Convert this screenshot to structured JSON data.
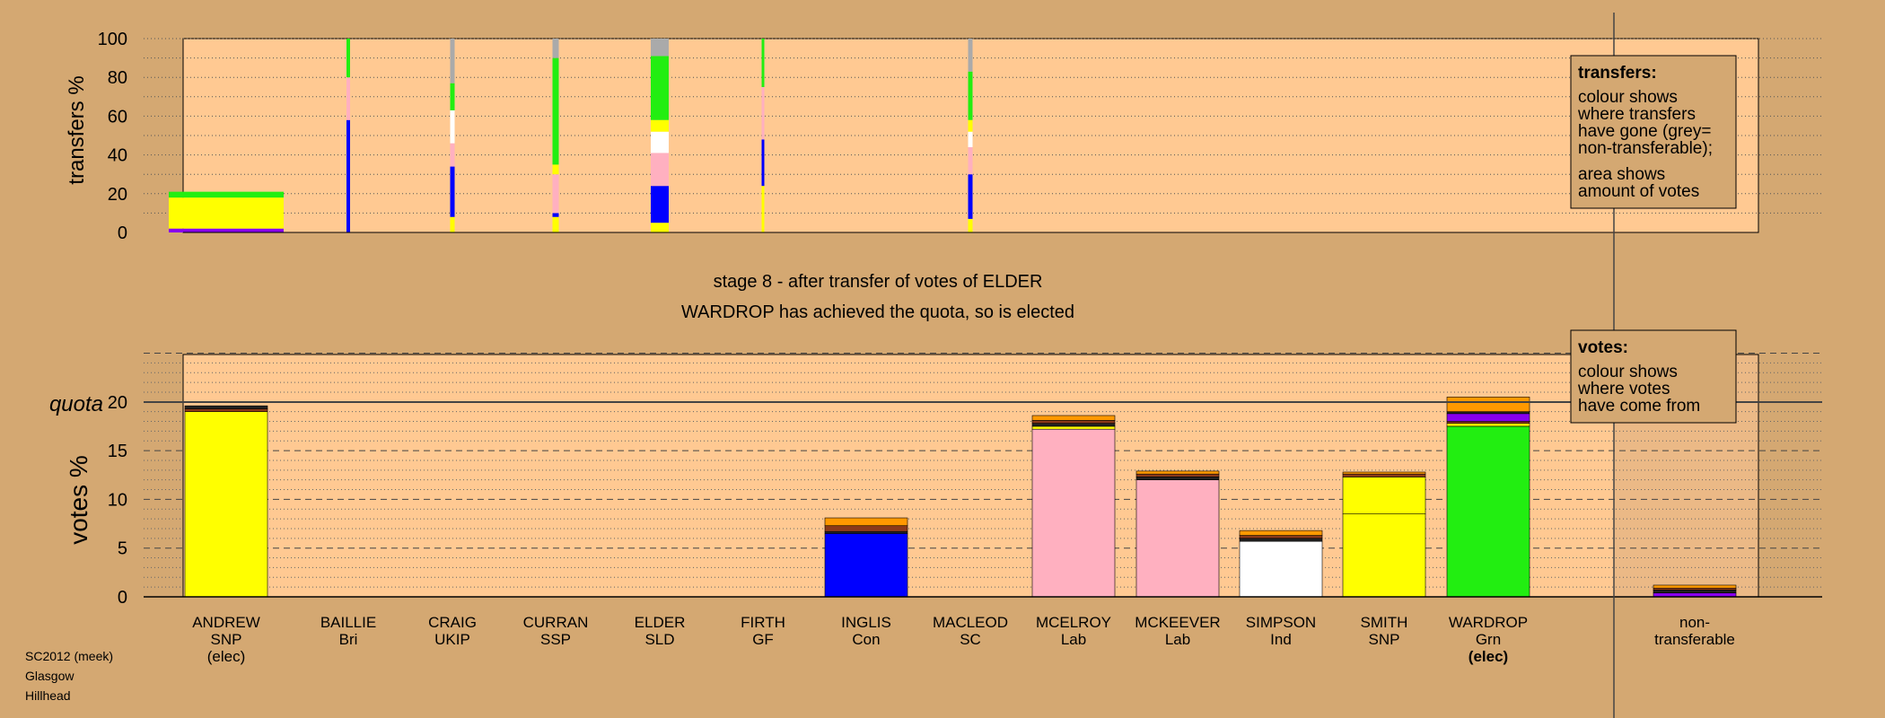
{
  "colors": {
    "background": "#d4a872",
    "panel": "#ffc992",
    "snp": "#ffff00",
    "pink": "#ffb0c0",
    "green": "#22ee11",
    "blue": "#0000ff",
    "white": "#ffffff",
    "grey": "#aaaaaa",
    "orange": "#ff9900",
    "brown": "#8b3a1a",
    "purple": "#8800ee",
    "dark": "#222222"
  },
  "status": {
    "stage": "stage 8 - after transfer of votes of ELDER",
    "elected": "WARDROP has achieved the quota, so is elected"
  },
  "legend_transfers": {
    "title": "transfers:",
    "lines": [
      "colour shows",
      "where transfers",
      "have gone (grey=",
      "non-transferable);"
    ],
    "lines2": [
      "area shows",
      "amount of votes"
    ]
  },
  "legend_votes": {
    "title": "votes:",
    "lines": [
      "colour shows",
      "where votes",
      "have come from"
    ]
  },
  "footer": [
    "SC2012 (meek)",
    "Glasgow",
    "Hillhead"
  ],
  "chart_data": [
    {
      "type": "bar",
      "name": "transfers",
      "ylabel": "transfers %",
      "ylim": [
        0,
        100
      ],
      "yticks": [
        0,
        20,
        40,
        60,
        80,
        100
      ],
      "grid": true,
      "candidates": [
        {
          "name": "ANDREW",
          "segments": [
            {
              "color": "purple",
              "from": 0,
              "to": 2
            },
            {
              "color": "snp",
              "from": 2,
              "to": 18
            },
            {
              "color": "green",
              "from": 18,
              "to": 21
            }
          ]
        },
        {
          "name": "BAILLIE",
          "segments": [
            {
              "color": "blue",
              "from": 0,
              "to": 58
            },
            {
              "color": "pink",
              "from": 58,
              "to": 80
            },
            {
              "color": "green",
              "from": 80,
              "to": 100
            }
          ]
        },
        {
          "name": "CRAIG",
          "segments": [
            {
              "color": "snp",
              "from": 0,
              "to": 8
            },
            {
              "color": "blue",
              "from": 8,
              "to": 34
            },
            {
              "color": "pink",
              "from": 34,
              "to": 46
            },
            {
              "color": "white",
              "from": 46,
              "to": 63
            },
            {
              "color": "green",
              "from": 63,
              "to": 77
            },
            {
              "color": "grey",
              "from": 77,
              "to": 100
            }
          ]
        },
        {
          "name": "CURRAN",
          "segments": [
            {
              "color": "snp",
              "from": 0,
              "to": 8
            },
            {
              "color": "blue",
              "from": 8,
              "to": 10
            },
            {
              "color": "pink",
              "from": 10,
              "to": 30
            },
            {
              "color": "snp",
              "from": 30,
              "to": 35
            },
            {
              "color": "green",
              "from": 35,
              "to": 90
            },
            {
              "color": "grey",
              "from": 90,
              "to": 100
            }
          ]
        },
        {
          "name": "ELDER",
          "segments": [
            {
              "color": "snp",
              "from": 0,
              "to": 5
            },
            {
              "color": "blue",
              "from": 5,
              "to": 24
            },
            {
              "color": "pink",
              "from": 24,
              "to": 41
            },
            {
              "color": "white",
              "from": 41,
              "to": 52
            },
            {
              "color": "snp",
              "from": 52,
              "to": 58
            },
            {
              "color": "green",
              "from": 58,
              "to": 91
            },
            {
              "color": "grey",
              "from": 91,
              "to": 100
            }
          ]
        },
        {
          "name": "FIRTH",
          "segments": [
            {
              "color": "snp",
              "from": 0,
              "to": 24
            },
            {
              "color": "blue",
              "from": 24,
              "to": 48
            },
            {
              "color": "pink",
              "from": 48,
              "to": 75
            },
            {
              "color": "green",
              "from": 75,
              "to": 100
            }
          ]
        },
        {
          "name": "INGLIS",
          "segments": []
        },
        {
          "name": "MACLEOD",
          "segments": [
            {
              "color": "snp",
              "from": 0,
              "to": 7
            },
            {
              "color": "blue",
              "from": 7,
              "to": 30
            },
            {
              "color": "pink",
              "from": 30,
              "to": 44
            },
            {
              "color": "white",
              "from": 44,
              "to": 52
            },
            {
              "color": "snp",
              "from": 52,
              "to": 58
            },
            {
              "color": "green",
              "from": 58,
              "to": 83
            },
            {
              "color": "grey",
              "from": 83,
              "to": 100
            }
          ]
        },
        {
          "name": "MCELROY",
          "segments": []
        },
        {
          "name": "MCKEEVER",
          "segments": []
        },
        {
          "name": "SIMPSON",
          "segments": []
        },
        {
          "name": "SMITH",
          "segments": []
        },
        {
          "name": "WARDROP",
          "segments": []
        },
        {
          "name": "non-transferable",
          "segments": []
        }
      ]
    },
    {
      "type": "bar",
      "name": "votes",
      "ylabel": "votes %",
      "ylim": [
        0,
        25
      ],
      "yticks": [
        0,
        5,
        10,
        15,
        20
      ],
      "quota": 20,
      "quota_label": "quota",
      "grid": true,
      "candidates": [
        {
          "name": "ANDREW",
          "party": "SNP",
          "note": "(elec)",
          "note_bold": false,
          "segments": [
            {
              "color": "snp",
              "value": 19.0
            },
            {
              "color": "brown",
              "value": 0.3
            },
            {
              "color": "dark",
              "value": 0.3
            }
          ]
        },
        {
          "name": "BAILLIE",
          "party": "Bri",
          "note": "",
          "note_bold": false,
          "segments": []
        },
        {
          "name": "CRAIG",
          "party": "UKIP",
          "note": "",
          "note_bold": false,
          "segments": []
        },
        {
          "name": "CURRAN",
          "party": "SSP",
          "note": "",
          "note_bold": false,
          "segments": []
        },
        {
          "name": "ELDER",
          "party": "SLD",
          "note": "",
          "note_bold": false,
          "segments": []
        },
        {
          "name": "FIRTH",
          "party": "GF",
          "note": "",
          "note_bold": false,
          "segments": []
        },
        {
          "name": "INGLIS",
          "party": "Con",
          "note": "",
          "note_bold": false,
          "segments": [
            {
              "color": "blue",
              "value": 6.5
            },
            {
              "color": "dark",
              "value": 0.2
            },
            {
              "color": "brown",
              "value": 0.6
            },
            {
              "color": "orange",
              "value": 0.8
            }
          ]
        },
        {
          "name": "MACLEOD",
          "party": "SC",
          "note": "",
          "note_bold": false,
          "segments": []
        },
        {
          "name": "MCELROY",
          "party": "Lab",
          "note": "",
          "note_bold": false,
          "segments": [
            {
              "color": "pink",
              "value": 17.2
            },
            {
              "color": "snp",
              "value": 0.3
            },
            {
              "color": "dark",
              "value": 0.3
            },
            {
              "color": "brown",
              "value": 0.3
            },
            {
              "color": "orange",
              "value": 0.5
            }
          ]
        },
        {
          "name": "MCKEEVER",
          "party": "Lab",
          "note": "",
          "note_bold": false,
          "segments": [
            {
              "color": "pink",
              "value": 12.0
            },
            {
              "color": "dark",
              "value": 0.3
            },
            {
              "color": "brown",
              "value": 0.3
            },
            {
              "color": "orange",
              "value": 0.3
            }
          ]
        },
        {
          "name": "SIMPSON",
          "party": "Ind",
          "note": "",
          "note_bold": false,
          "segments": [
            {
              "color": "white",
              "value": 5.7
            },
            {
              "color": "dark",
              "value": 0.3
            },
            {
              "color": "brown",
              "value": 0.3
            },
            {
              "color": "orange",
              "value": 0.5
            }
          ]
        },
        {
          "name": "SMITH",
          "party": "SNP",
          "note": "",
          "note_bold": false,
          "segments": [
            {
              "color": "snp",
              "value": 8.5
            },
            {
              "color": "snp",
              "value": 3.8
            },
            {
              "color": "brown",
              "value": 0.3
            },
            {
              "color": "orange",
              "value": 0.2
            }
          ]
        },
        {
          "name": "WARDROP",
          "party": "Grn",
          "note": "(elec)",
          "note_bold": true,
          "segments": [
            {
              "color": "green",
              "value": 17.5
            },
            {
              "color": "snp",
              "value": 0.3
            },
            {
              "color": "brown",
              "value": 0.2
            },
            {
              "color": "purple",
              "value": 0.8
            },
            {
              "color": "dark",
              "value": 0.2
            },
            {
              "color": "orange",
              "value": 1.5
            }
          ]
        },
        {
          "name": "non-",
          "party": "transferable",
          "note": "",
          "note_bold": false,
          "segments": [
            {
              "color": "purple",
              "value": 0.4
            },
            {
              "color": "dark",
              "value": 0.3
            },
            {
              "color": "brown",
              "value": 0.2
            },
            {
              "color": "orange",
              "value": 0.3
            }
          ]
        }
      ]
    }
  ]
}
